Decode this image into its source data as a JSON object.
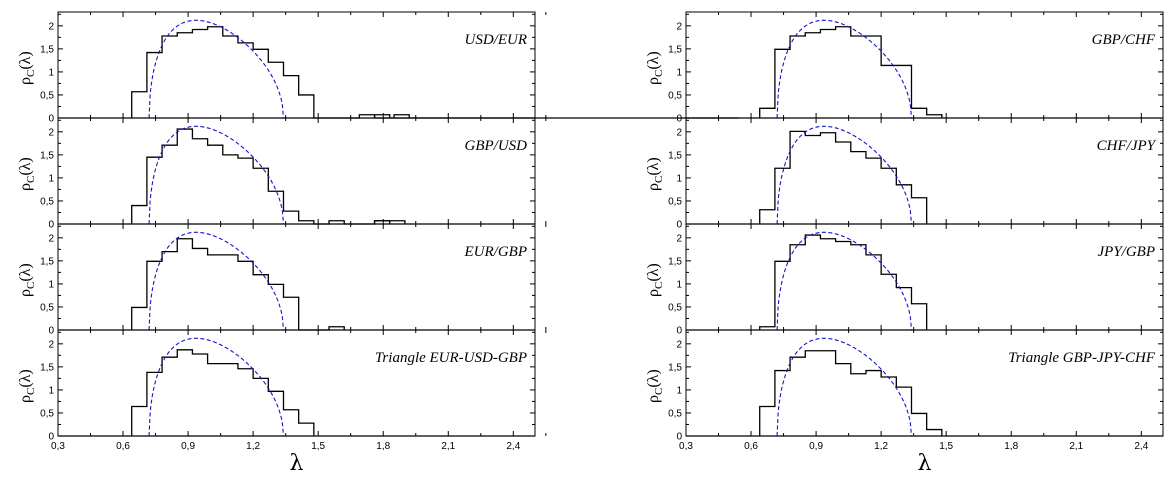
{
  "chart_data": [
    {
      "type": "histogram",
      "column": "left",
      "xlabel": "λ",
      "ylabel": "ρ_C(λ)",
      "xlim": [
        0.3,
        2.5
      ],
      "ylim": [
        0,
        2.3
      ],
      "xticks": [
        "0,3",
        "0,6",
        "0,9",
        "1,2",
        "1,5",
        "1,8",
        "2,1",
        "2,4"
      ],
      "yticks": [
        "0",
        "0,5",
        "1",
        "1,5",
        "2"
      ],
      "bin_width": 0.07,
      "panels": [
        {
          "label": "USD/EUR",
          "bin_start": 0.64,
          "histogram": [
            0.57,
            1.42,
            1.78,
            1.85,
            1.92,
            1.98,
            1.78,
            1.63,
            1.49,
            1.21,
            0.92,
            0.5,
            0.0,
            0.0,
            0.0,
            0.07,
            0.0,
            0.0,
            0.0,
            0.0,
            0.0,
            0.0,
            0.0,
            0.0,
            0.0,
            0.0,
            0.0,
            0.0,
            0.0,
            0.0,
            0.0,
            0.0,
            0.0,
            0.0,
            0.0,
            0.0,
            0.0,
            0.0,
            0.0,
            0.0
          ],
          "extra_bins": [
            {
              "x": 1.76,
              "value": 0.07
            },
            {
              "x": 1.85,
              "value": 0.07
            }
          ]
        },
        {
          "label": "GBP/USD",
          "bin_start": 0.64,
          "histogram": [
            0.4,
            1.45,
            1.71,
            2.06,
            1.85,
            1.71,
            1.5,
            1.43,
            1.21,
            0.71,
            0.28,
            0.07,
            0.0,
            0.07,
            0.0,
            0.0,
            0.07,
            0.07
          ],
          "extra_bins": [
            {
              "x": 1.76,
              "value": 0.07
            }
          ]
        },
        {
          "label": "EUR/GBP",
          "bin_start": 0.64,
          "histogram": [
            0.49,
            1.49,
            1.7,
            1.98,
            1.77,
            1.63,
            1.63,
            1.49,
            1.2,
            0.99,
            0.71,
            0.0,
            0.0,
            0.07
          ],
          "extra_bins": []
        },
        {
          "label": "Triangle EUR-USD-GBP",
          "bin_start": 0.64,
          "histogram": [
            0.64,
            1.38,
            1.71,
            1.87,
            1.78,
            1.57,
            1.57,
            1.46,
            1.25,
            0.97,
            0.57,
            0.28
          ],
          "extra_bins": []
        }
      ]
    },
    {
      "type": "histogram",
      "column": "right",
      "xlabel": "λ",
      "ylabel": "ρ_C(λ)",
      "xlim": [
        0.3,
        2.5
      ],
      "ylim": [
        0,
        2.3
      ],
      "xticks": [
        "0,3",
        "0,6",
        "0,9",
        "1,2",
        "1,5",
        "1,8",
        "2,1",
        "2,4"
      ],
      "yticks": [
        "0",
        "0,5",
        "1",
        "1,5",
        "2"
      ],
      "bin_width": 0.07,
      "panels": [
        {
          "label": "GBP/CHF",
          "bin_start": 0.64,
          "histogram": [
            0.21,
            1.49,
            1.78,
            1.85,
            1.92,
            1.98,
            1.78,
            1.78,
            1.14,
            1.14,
            0.21,
            0.07
          ],
          "extra_bins": []
        },
        {
          "label": "CHF/JPY",
          "bin_start": 0.64,
          "histogram": [
            0.31,
            1.21,
            2.01,
            1.92,
            1.98,
            1.78,
            1.57,
            1.43,
            1.21,
            0.85,
            0.57
          ],
          "extra_bins": []
        },
        {
          "label": "JPY/GBP",
          "bin_start": 0.64,
          "histogram": [
            0.07,
            1.49,
            1.85,
            2.06,
            1.98,
            1.92,
            1.85,
            1.63,
            1.21,
            0.92,
            0.57
          ],
          "extra_bins": []
        },
        {
          "label": "Triangle GBP-JPY-CHF",
          "bin_start": 0.64,
          "histogram": [
            0.64,
            1.42,
            1.71,
            1.85,
            1.85,
            1.57,
            1.35,
            1.42,
            1.28,
            1.06,
            0.49,
            0.14
          ],
          "extra_bins": []
        }
      ]
    }
  ],
  "theory_curve": {
    "description_free": true,
    "lambda_min": 0.72,
    "lambda_max": 1.34,
    "peak": 2.12,
    "peak_lambda": 0.94,
    "color": "#1515cc"
  },
  "colors": {
    "histogram": "#000000",
    "theory": "#1515cc",
    "frame": "#000000"
  }
}
